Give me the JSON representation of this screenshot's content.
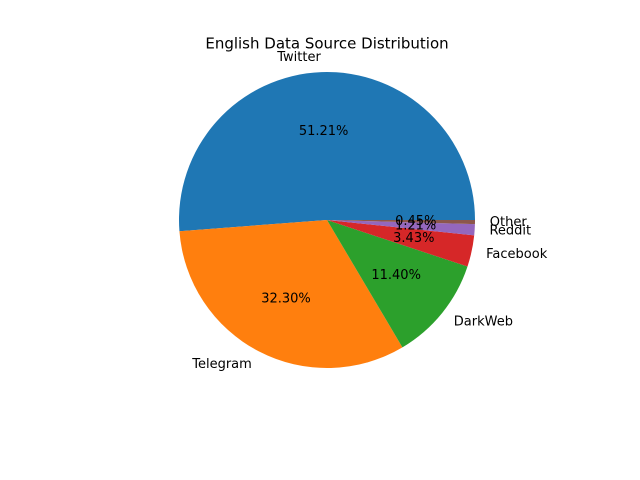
{
  "chart_data": {
    "type": "pie",
    "title": "English Data Source Distribution",
    "categories": [
      "Twitter",
      "Telegram",
      "DarkWeb",
      "Facebook",
      "Reddit",
      "Other"
    ],
    "values": [
      51.21,
      32.3,
      11.4,
      3.43,
      1.21,
      0.45
    ],
    "value_labels": [
      "51.21%",
      "32.30%",
      "11.40%",
      "3.43%",
      "1.21%",
      "0.45%"
    ],
    "colors": [
      "#1f77b4",
      "#ff7f0e",
      "#2ca02c",
      "#d62728",
      "#9467bd",
      "#8c564b"
    ]
  }
}
